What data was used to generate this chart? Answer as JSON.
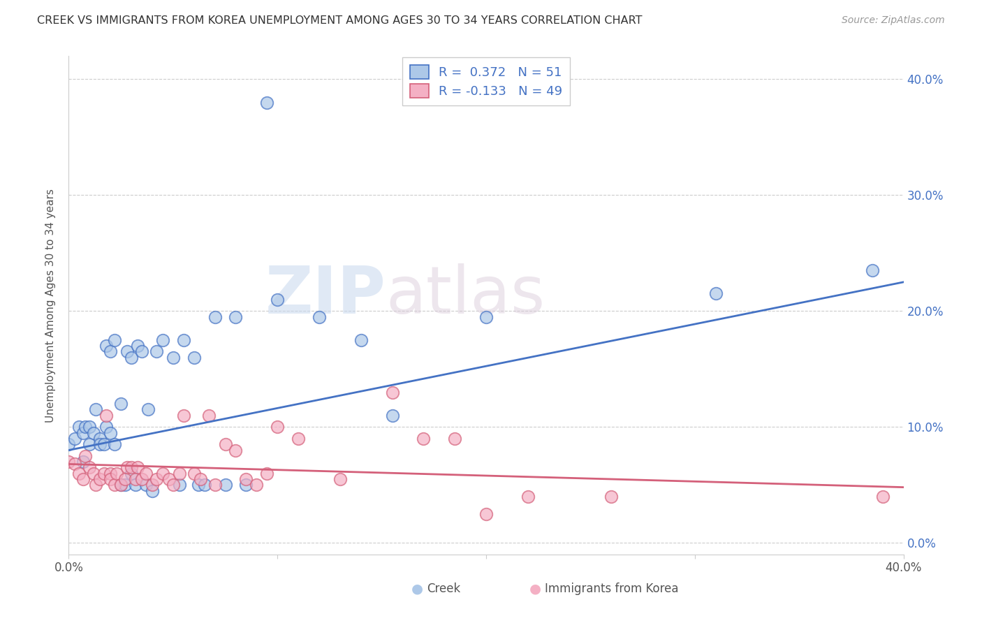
{
  "title": "CREEK VS IMMIGRANTS FROM KOREA UNEMPLOYMENT AMONG AGES 30 TO 34 YEARS CORRELATION CHART",
  "source": "Source: ZipAtlas.com",
  "ylabel": "Unemployment Among Ages 30 to 34 years",
  "xlim": [
    0.0,
    0.4
  ],
  "ylim": [
    -0.01,
    0.42
  ],
  "creek_color": "#adc8e8",
  "creek_line_color": "#4472c4",
  "korea_color": "#f4b0c4",
  "korea_line_color": "#d4607a",
  "creek_R": 0.372,
  "creek_N": 51,
  "korea_R": -0.133,
  "korea_N": 49,
  "watermark_zip": "ZIP",
  "watermark_atlas": "atlas",
  "creek_x": [
    0.0,
    0.003,
    0.005,
    0.007,
    0.007,
    0.008,
    0.01,
    0.01,
    0.012,
    0.013,
    0.015,
    0.015,
    0.017,
    0.018,
    0.018,
    0.02,
    0.02,
    0.022,
    0.022,
    0.025,
    0.025,
    0.027,
    0.028,
    0.03,
    0.03,
    0.032,
    0.033,
    0.035,
    0.037,
    0.038,
    0.04,
    0.042,
    0.045,
    0.05,
    0.053,
    0.055,
    0.06,
    0.062,
    0.065,
    0.07,
    0.075,
    0.08,
    0.085,
    0.095,
    0.1,
    0.12,
    0.14,
    0.155,
    0.2,
    0.31,
    0.385
  ],
  "creek_y": [
    0.085,
    0.09,
    0.1,
    0.095,
    0.07,
    0.1,
    0.085,
    0.1,
    0.095,
    0.115,
    0.09,
    0.085,
    0.085,
    0.1,
    0.17,
    0.095,
    0.165,
    0.085,
    0.175,
    0.05,
    0.12,
    0.05,
    0.165,
    0.06,
    0.16,
    0.05,
    0.17,
    0.165,
    0.05,
    0.115,
    0.045,
    0.165,
    0.175,
    0.16,
    0.05,
    0.175,
    0.16,
    0.05,
    0.05,
    0.195,
    0.05,
    0.195,
    0.05,
    0.38,
    0.21,
    0.195,
    0.175,
    0.11,
    0.195,
    0.215,
    0.235
  ],
  "korea_x": [
    0.0,
    0.003,
    0.005,
    0.007,
    0.008,
    0.01,
    0.012,
    0.013,
    0.015,
    0.017,
    0.018,
    0.02,
    0.02,
    0.022,
    0.023,
    0.025,
    0.027,
    0.028,
    0.03,
    0.032,
    0.033,
    0.035,
    0.037,
    0.04,
    0.042,
    0.045,
    0.048,
    0.05,
    0.053,
    0.055,
    0.06,
    0.063,
    0.067,
    0.07,
    0.075,
    0.08,
    0.085,
    0.09,
    0.095,
    0.1,
    0.11,
    0.13,
    0.155,
    0.17,
    0.185,
    0.2,
    0.22,
    0.26,
    0.39
  ],
  "korea_y": [
    0.07,
    0.068,
    0.06,
    0.055,
    0.075,
    0.065,
    0.06,
    0.05,
    0.055,
    0.06,
    0.11,
    0.06,
    0.055,
    0.05,
    0.06,
    0.05,
    0.055,
    0.065,
    0.065,
    0.055,
    0.065,
    0.055,
    0.06,
    0.05,
    0.055,
    0.06,
    0.055,
    0.05,
    0.06,
    0.11,
    0.06,
    0.055,
    0.11,
    0.05,
    0.085,
    0.08,
    0.055,
    0.05,
    0.06,
    0.1,
    0.09,
    0.055,
    0.13,
    0.09,
    0.09,
    0.025,
    0.04,
    0.04,
    0.04
  ]
}
